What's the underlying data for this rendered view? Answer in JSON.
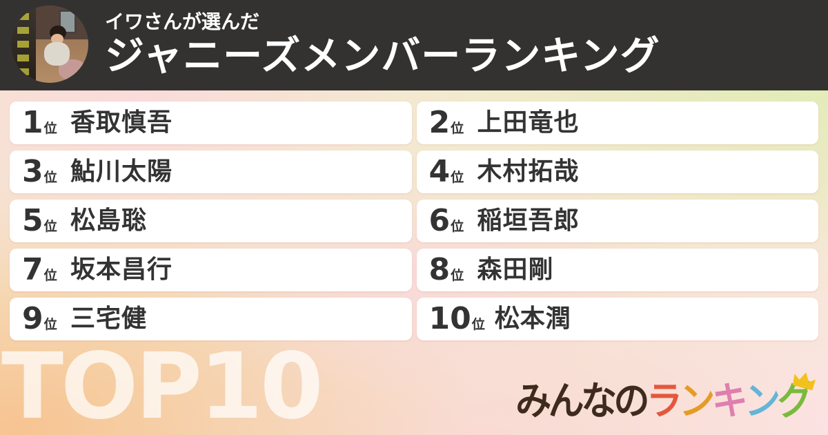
{
  "header": {
    "subtitle": "イワさんが選んだ",
    "title": "ジャニーズメンバーランキング"
  },
  "ranking": {
    "rank_suffix": "位",
    "items": [
      {
        "rank": "1",
        "name": "香取慎吾"
      },
      {
        "rank": "2",
        "name": "上田竜也"
      },
      {
        "rank": "3",
        "name": "鮎川太陽"
      },
      {
        "rank": "4",
        "name": "木村拓哉"
      },
      {
        "rank": "5",
        "name": "松島聡"
      },
      {
        "rank": "6",
        "name": "稲垣吾郎"
      },
      {
        "rank": "7",
        "name": "坂本昌行"
      },
      {
        "rank": "8",
        "name": "森田剛"
      },
      {
        "rank": "9",
        "name": "三宅健"
      },
      {
        "rank": "10",
        "name": "松本潤"
      }
    ]
  },
  "footer": {
    "top_label": "TOP10",
    "logo": {
      "prefix": "みんなの",
      "colored": [
        {
          "char": "ラ",
          "color": "#e4573d"
        },
        {
          "char": "ン",
          "color": "#e69b27"
        },
        {
          "char": "キ",
          "color": "#df7fae"
        },
        {
          "char": "ン",
          "color": "#64b5d8"
        },
        {
          "char": "グ",
          "color": "#7aba3d"
        }
      ],
      "crown_color": "#f2c11c"
    }
  },
  "colors": {
    "header_background": "#333231",
    "card_background": "#ffffff",
    "text_dark": "#333333",
    "logo_prefix_color": "#3f2b1e"
  }
}
